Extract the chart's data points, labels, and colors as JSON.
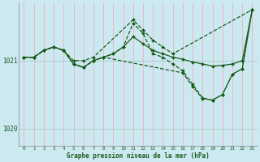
{
  "xlabel": "Graphe pression niveau de la mer (hPa)",
  "bg_color": "#cce8f0",
  "line_color": "#1a5c1a",
  "grid_color_v": "#f0aaaa",
  "xlim": [
    -0.5,
    23.5
  ],
  "ylim": [
    1019.75,
    1021.85
  ],
  "ytick_positions": [
    1020,
    1021
  ],
  "ytick_labels": [
    "1020",
    "1021"
  ],
  "xticks": [
    0,
    1,
    2,
    3,
    4,
    5,
    6,
    7,
    8,
    9,
    10,
    11,
    12,
    13,
    14,
    15,
    16,
    17,
    18,
    19,
    20,
    21,
    22,
    23
  ],
  "series": [
    {
      "x": [
        0,
        1,
        2,
        3,
        4,
        5,
        6,
        7,
        11,
        12,
        13,
        14,
        15,
        23
      ],
      "y": [
        1021.05,
        1021.05,
        1021.15,
        1021.2,
        1021.15,
        1021.0,
        1021.0,
        1021.05,
        1021.6,
        1021.45,
        1021.3,
        1021.2,
        1021.1,
        1021.75
      ],
      "style": "dashed",
      "lw": 0.9
    },
    {
      "x": [
        0,
        1,
        2,
        3,
        4,
        5,
        6,
        7,
        8,
        9,
        10,
        11,
        12,
        13,
        14,
        15,
        16,
        17,
        18,
        19,
        20,
        21,
        22,
        23
      ],
      "y": [
        1021.05,
        1021.05,
        1021.15,
        1021.2,
        1021.15,
        1020.95,
        1020.9,
        1021.0,
        1021.05,
        1021.1,
        1021.2,
        1021.55,
        1021.4,
        1021.1,
        1021.05,
        1020.95,
        1020.85,
        1020.65,
        1020.45,
        1020.42,
        1020.5,
        1020.8,
        1020.88,
        1021.75
      ],
      "style": "dashed",
      "lw": 0.9
    },
    {
      "x": [
        0,
        1,
        2,
        3,
        4,
        5,
        6,
        7,
        8,
        16,
        17,
        18,
        19,
        20,
        21,
        22,
        23
      ],
      "y": [
        1021.05,
        1021.05,
        1021.15,
        1021.2,
        1021.15,
        1020.95,
        1020.9,
        1021.0,
        1021.05,
        1020.82,
        1020.62,
        1020.44,
        1020.42,
        1020.5,
        1020.8,
        1020.88,
        1021.75
      ],
      "style": "dashed",
      "lw": 0.9
    },
    {
      "x": [
        0,
        1,
        2,
        3,
        4,
        5,
        6,
        7,
        8,
        9,
        10,
        11,
        12,
        13,
        14,
        15,
        16,
        17,
        18,
        19,
        20,
        21,
        22,
        23
      ],
      "y": [
        1021.05,
        1021.05,
        1021.15,
        1021.2,
        1021.15,
        1020.95,
        1020.9,
        1021.0,
        1021.05,
        1021.1,
        1021.2,
        1021.35,
        1021.25,
        1021.15,
        1021.1,
        1021.05,
        1021.02,
        1020.98,
        1020.95,
        1020.92,
        1020.93,
        1020.95,
        1021.0,
        1021.75
      ],
      "style": "solid",
      "lw": 0.9
    }
  ]
}
